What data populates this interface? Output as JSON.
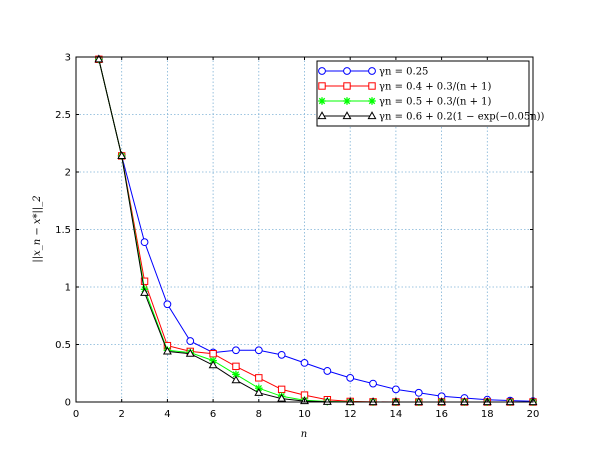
{
  "chart_data": {
    "type": "line",
    "title": "",
    "xlabel": "n",
    "ylabel": "||x_n − x*||_2",
    "xlim": [
      0,
      20
    ],
    "ylim": [
      0,
      3
    ],
    "xticks": [
      0,
      2,
      4,
      6,
      8,
      10,
      12,
      14,
      16,
      18,
      20
    ],
    "yticks": [
      0,
      0.5,
      1,
      1.5,
      2,
      2.5,
      3
    ],
    "xtick_labels": [
      "0",
      "2",
      "4",
      "6",
      "8",
      "10",
      "12",
      "14",
      "16",
      "18",
      "20"
    ],
    "ytick_labels": [
      "0",
      "0.5",
      "1",
      "1.5",
      "2",
      "2.5",
      "3"
    ],
    "grid": true,
    "legend_position": "top-right",
    "x": [
      1,
      2,
      3,
      4,
      5,
      6,
      7,
      8,
      9,
      10,
      11,
      12,
      13,
      14,
      15,
      16,
      17,
      18,
      19,
      20
    ],
    "series": [
      {
        "name": "γn = 0.25",
        "color": "#0000ff",
        "marker": "circle",
        "values": [
          2.98,
          2.14,
          1.39,
          0.85,
          0.53,
          0.43,
          0.45,
          0.45,
          0.41,
          0.34,
          0.27,
          0.21,
          0.16,
          0.11,
          0.08,
          0.05,
          0.035,
          0.02,
          0.012,
          0.007
        ]
      },
      {
        "name": "γn = 0.4 + 0.3/(n + 1)",
        "color": "#ff0000",
        "marker": "square",
        "values": [
          2.98,
          2.14,
          1.05,
          0.49,
          0.44,
          0.42,
          0.31,
          0.21,
          0.11,
          0.06,
          0.02,
          0.005,
          0.001,
          0,
          0,
          0,
          0,
          0,
          0,
          0
        ]
      },
      {
        "name": "γn = 0.5 + 0.3/(n + 1)",
        "color": "#00ff00",
        "marker": "star",
        "values": [
          2.98,
          2.14,
          0.98,
          0.45,
          0.43,
          0.36,
          0.24,
          0.12,
          0.05,
          0.015,
          0.004,
          0.001,
          0,
          0,
          0,
          0,
          0,
          0,
          0,
          0
        ]
      },
      {
        "name": "γn = 0.6 + 0.2(1 − exp(−0.05n))",
        "color": "#000000",
        "marker": "triangle",
        "values": [
          2.98,
          2.14,
          0.95,
          0.44,
          0.42,
          0.32,
          0.19,
          0.08,
          0.03,
          0.008,
          0.002,
          0,
          0,
          0,
          0,
          0,
          0,
          0,
          0,
          0
        ]
      }
    ]
  }
}
